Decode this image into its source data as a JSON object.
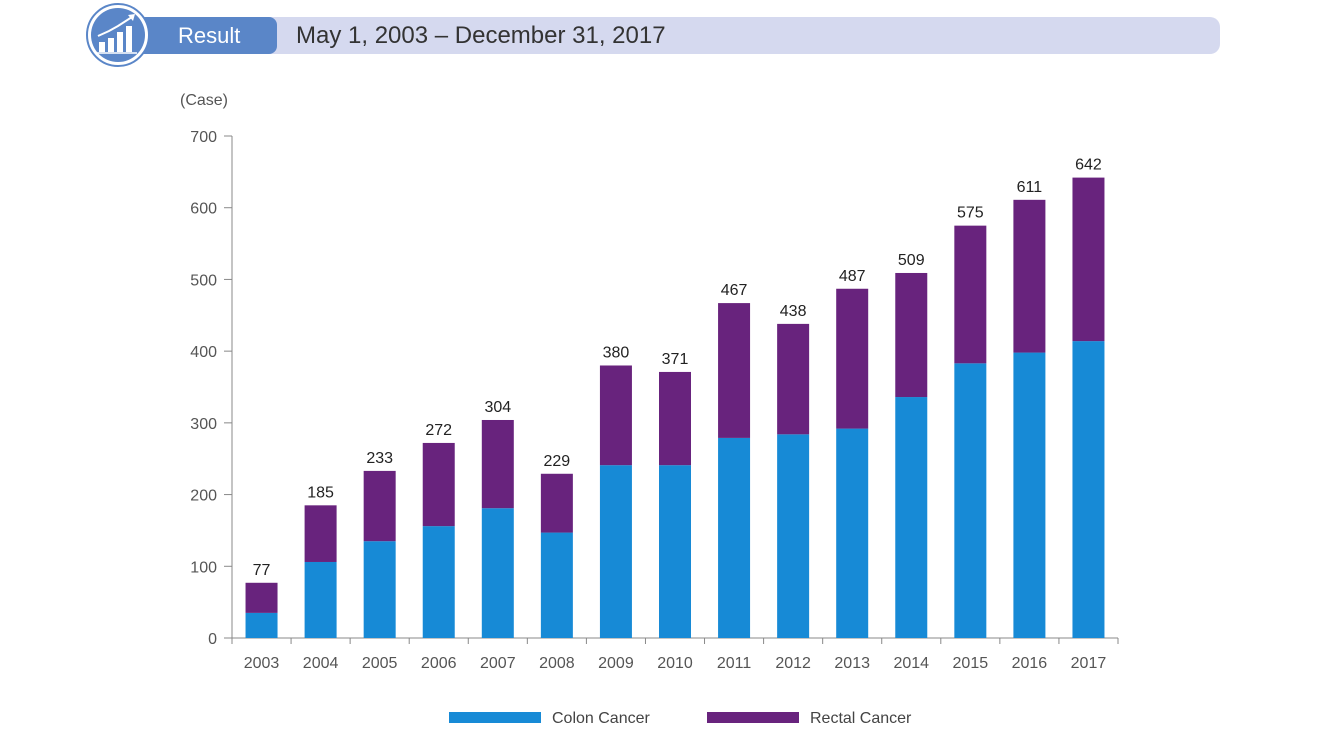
{
  "header": {
    "result_label": "Result",
    "date_range": "May 1, 2003 – December 31, 2017",
    "tab_color": "#5a86c8",
    "bar_color": "#d5d9ef",
    "badge_icon": "chart-growth-icon"
  },
  "chart_data": {
    "type": "bar",
    "stacked": true,
    "ylabel": "(Case)",
    "ylim": [
      0,
      700
    ],
    "yticks": [
      0,
      100,
      200,
      300,
      400,
      500,
      600,
      700
    ],
    "categories": [
      "2003",
      "2004",
      "2005",
      "2006",
      "2007",
      "2008",
      "2009",
      "2010",
      "2011",
      "2012",
      "2013",
      "2014",
      "2015",
      "2016",
      "2017"
    ],
    "totals": [
      77,
      185,
      233,
      272,
      304,
      229,
      380,
      371,
      467,
      438,
      487,
      509,
      575,
      611,
      642
    ],
    "series": [
      {
        "name": "Colon Cancer",
        "color": "#178ad6",
        "values": [
          35,
          106,
          135,
          156,
          181,
          147,
          241,
          241,
          279,
          284,
          292,
          336,
          383,
          398,
          414
        ]
      },
      {
        "name": "Rectal Cancer",
        "color": "#68237d",
        "values": [
          42,
          79,
          98,
          116,
          123,
          82,
          139,
          130,
          188,
          154,
          195,
          173,
          192,
          213,
          228
        ]
      }
    ],
    "grid": false,
    "legend": "bottom"
  }
}
